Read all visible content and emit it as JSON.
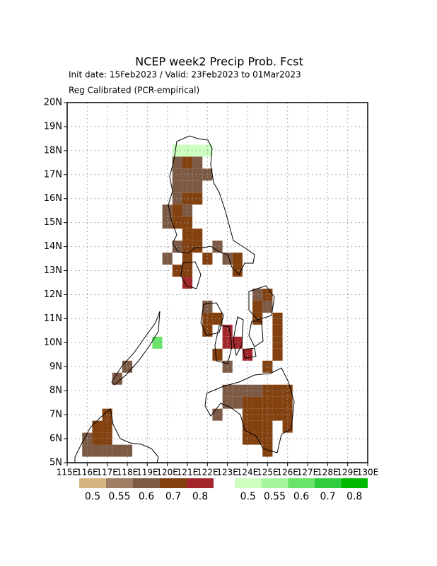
{
  "chart_data": {
    "type": "map",
    "title": "NCEP week2 Precip Prob. Fcst",
    "subtitle": "Init date: 15Feb2023 / Valid: 23Feb2023 to 01Mar2023",
    "note": "Reg Calibrated (PCR-empirical)",
    "xlim": [
      115,
      130
    ],
    "ylim": [
      5,
      20
    ],
    "xticks": [
      {
        "value": 115,
        "label": "115E"
      },
      {
        "value": 116,
        "label": "116E"
      },
      {
        "value": 117,
        "label": "117E"
      },
      {
        "value": 118,
        "label": "118E"
      },
      {
        "value": 119,
        "label": "119E"
      },
      {
        "value": 120,
        "label": "120E"
      },
      {
        "value": 121,
        "label": "121E"
      },
      {
        "value": 122,
        "label": "122E"
      },
      {
        "value": 123,
        "label": "123E"
      },
      {
        "value": 124,
        "label": "124E"
      },
      {
        "value": 125,
        "label": "125E"
      },
      {
        "value": 126,
        "label": "126E"
      },
      {
        "value": 127,
        "label": "127E"
      },
      {
        "value": 128,
        "label": "128E"
      },
      {
        "value": 129,
        "label": "129E"
      },
      {
        "value": 130,
        "label": "130E"
      }
    ],
    "yticks": [
      {
        "value": 5,
        "label": "5N"
      },
      {
        "value": 6,
        "label": "6N"
      },
      {
        "value": 7,
        "label": "7N"
      },
      {
        "value": 8,
        "label": "8N"
      },
      {
        "value": 9,
        "label": "9N"
      },
      {
        "value": 10,
        "label": "10N"
      },
      {
        "value": 11,
        "label": "11N"
      },
      {
        "value": 12,
        "label": "12N"
      },
      {
        "value": 13,
        "label": "13N"
      },
      {
        "value": 14,
        "label": "14N"
      },
      {
        "value": 15,
        "label": "15N"
      },
      {
        "value": 16,
        "label": "16N"
      },
      {
        "value": 17,
        "label": "17N"
      },
      {
        "value": 18,
        "label": "18N"
      },
      {
        "value": 19,
        "label": "19N"
      },
      {
        "value": 20,
        "label": "20N"
      }
    ],
    "grid": true,
    "below": {
      "levels": [
        0.5,
        0.55,
        0.6,
        0.7,
        0.8
      ],
      "colors": [
        "#d8b482",
        "#a07e66",
        "#7d5a45",
        "#83410f",
        "#a2262c"
      ],
      "lon": [
        120.5,
        121.0,
        121.5,
        120.5,
        121.0,
        121.5,
        122.0,
        120.5,
        121.0,
        121.5,
        120.5,
        121.0,
        121.5,
        120.0,
        120.5,
        121.0,
        120.0,
        120.5,
        121.0,
        121.0,
        121.5,
        120.5,
        121.0,
        121.5,
        122.5,
        120.0,
        121.0,
        122.0,
        123.0,
        123.5,
        120.5,
        121.0,
        123.5,
        121.0,
        124.5,
        125.0,
        122.0,
        124.5,
        125.0,
        122.0,
        122.5,
        124.5,
        125.5,
        122.0,
        123.0,
        125.5,
        123.0,
        123.5,
        125.5,
        122.5,
        124.0,
        125.5,
        123.0,
        125.0,
        123.0,
        123.5,
        124.0,
        124.5,
        125.0,
        125.5,
        126.0,
        123.0,
        123.5,
        124.0,
        124.5,
        125.0,
        125.5,
        126.0,
        122.5,
        124.0,
        124.5,
        125.0,
        125.5,
        126.0,
        124.0,
        124.5,
        125.0,
        126.0,
        124.0,
        124.5,
        125.0,
        125.0,
        118.0,
        117.5,
        117.0,
        116.5,
        117.0,
        116.0,
        116.5,
        117.0,
        116.0,
        116.5,
        117.0,
        117.5,
        118.0
      ],
      "lat": [
        17.5,
        17.5,
        17.5,
        17.0,
        17.0,
        17.0,
        17.0,
        16.5,
        16.5,
        16.5,
        16.0,
        16.0,
        16.0,
        15.5,
        15.5,
        15.5,
        15.0,
        15.0,
        15.0,
        14.5,
        14.5,
        14.0,
        14.0,
        14.0,
        14.0,
        13.5,
        13.5,
        13.5,
        13.5,
        13.5,
        13.0,
        13.0,
        13.0,
        12.5,
        12.0,
        12.0,
        11.5,
        11.5,
        11.5,
        11.0,
        11.0,
        11.0,
        11.0,
        10.5,
        10.5,
        10.5,
        10.0,
        10.0,
        10.0,
        9.5,
        9.5,
        9.5,
        9.0,
        9.0,
        8.0,
        8.0,
        8.0,
        8.0,
        8.0,
        8.0,
        8.0,
        7.5,
        7.5,
        7.5,
        7.5,
        7.5,
        7.5,
        7.5,
        7.0,
        7.0,
        7.0,
        7.0,
        7.0,
        7.0,
        6.5,
        6.5,
        6.5,
        6.5,
        6.0,
        6.0,
        6.0,
        5.5,
        9.0,
        8.5,
        7.0,
        6.5,
        6.5,
        6.0,
        6.0,
        6.0,
        5.5,
        5.5,
        5.5,
        5.5,
        5.5
      ],
      "level": [
        0.6,
        0.7,
        0.6,
        0.6,
        0.6,
        0.6,
        0.6,
        0.6,
        0.6,
        0.6,
        0.6,
        0.7,
        0.7,
        0.6,
        0.7,
        0.6,
        0.6,
        0.7,
        0.7,
        0.7,
        0.7,
        0.6,
        0.7,
        0.7,
        0.6,
        0.6,
        0.7,
        0.7,
        0.6,
        0.7,
        0.7,
        0.7,
        0.7,
        0.8,
        0.6,
        0.7,
        0.6,
        0.7,
        0.6,
        0.7,
        0.7,
        0.7,
        0.7,
        0.7,
        0.8,
        0.7,
        0.8,
        0.8,
        0.7,
        0.7,
        0.8,
        0.7,
        0.6,
        0.7,
        0.6,
        0.6,
        0.6,
        0.6,
        0.7,
        0.7,
        0.7,
        0.6,
        0.6,
        0.7,
        0.7,
        0.7,
        0.7,
        0.7,
        0.6,
        0.7,
        0.7,
        0.7,
        0.7,
        0.7,
        0.7,
        0.7,
        0.7,
        0.7,
        0.7,
        0.7,
        0.7,
        0.7,
        0.6,
        0.6,
        0.7,
        0.7,
        0.7,
        0.6,
        0.7,
        0.7,
        0.6,
        0.6,
        0.6,
        0.6,
        0.6
      ]
    },
    "above": {
      "levels": [
        0.5,
        0.55,
        0.6,
        0.7,
        0.8
      ],
      "colors": [
        "#ccffc0",
        "#a8f5a0",
        "#6ae36a",
        "#30cc40",
        "#00b800"
      ],
      "lon": [
        120.5,
        121.0,
        121.5,
        122.0,
        119.5
      ],
      "lat": [
        18.0,
        18.0,
        18.0,
        18.0,
        10.0
      ],
      "level": [
        0.5,
        0.5,
        0.5,
        0.5,
        0.6
      ]
    }
  }
}
